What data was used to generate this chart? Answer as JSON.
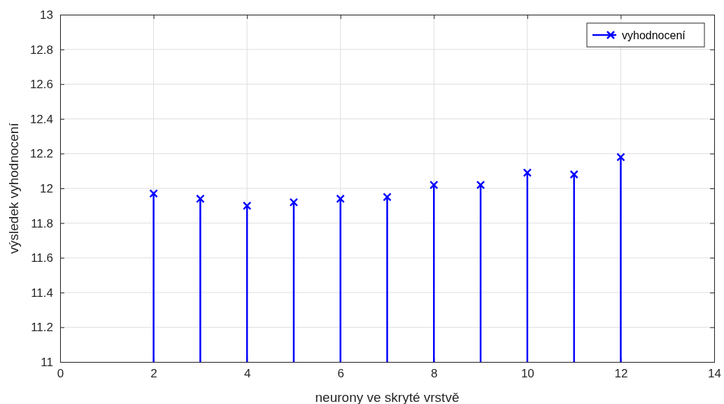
{
  "chart_data": {
    "type": "lollipop",
    "xlabel": "neurony ve skryté vrstvě",
    "ylabel": "výsledek vyhodnocení",
    "x": [
      2,
      3,
      4,
      5,
      6,
      7,
      8,
      9,
      10,
      11,
      12
    ],
    "series": [
      {
        "name": "vyhodnocení",
        "color": "#0000ff",
        "values": [
          11.97,
          11.94,
          11.9,
          11.92,
          11.94,
          11.95,
          12.02,
          12.02,
          12.09,
          12.08,
          12.18
        ]
      }
    ],
    "xlim": [
      0,
      14
    ],
    "xticks": [
      0,
      2,
      4,
      6,
      8,
      10,
      12,
      14
    ],
    "ylim": [
      11,
      13
    ],
    "yticks": [
      11,
      11.2,
      11.4,
      11.6,
      11.8,
      12,
      12.2,
      12.4,
      12.6,
      12.8,
      13
    ],
    "grid": true,
    "legend": "top right",
    "marker": "cross"
  }
}
